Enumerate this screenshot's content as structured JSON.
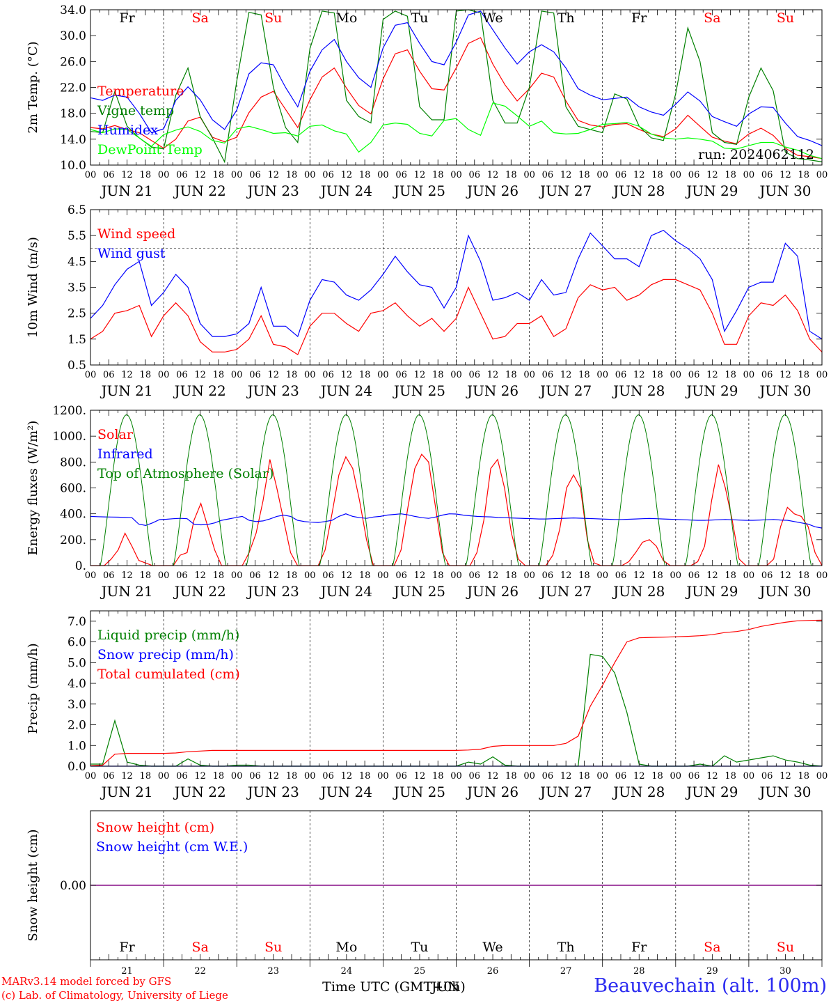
{
  "run_label": "run: 2024062112",
  "weekdays": [
    {
      "label": "Fr",
      "color": "#000000"
    },
    {
      "label": "Sa",
      "color": "#ff0000"
    },
    {
      "label": "Su",
      "color": "#ff0000"
    },
    {
      "label": "Mo",
      "color": "#000000"
    },
    {
      "label": "Tu",
      "color": "#000000"
    },
    {
      "label": "We",
      "color": "#000000"
    },
    {
      "label": "Th",
      "color": "#000000"
    },
    {
      "label": "Fr",
      "color": "#000000"
    },
    {
      "label": "Sa",
      "color": "#ff0000"
    },
    {
      "label": "Su",
      "color": "#ff0000"
    }
  ],
  "hour_ticks": [
    "00",
    "06",
    "12",
    "18"
  ],
  "date_labels": [
    "JUN 21",
    "JUN 22",
    "JUN 23",
    "JUN 24",
    "JUN 25",
    "JUN 26",
    "JUN 27",
    "JUN 28",
    "JUN 29",
    "JUN 30"
  ],
  "bottom_day_numbers": [
    "21",
    "22",
    "23",
    "24",
    "25",
    "26",
    "27",
    "28",
    "29",
    "30"
  ],
  "x_axis_title": "Time UTC (GMT+0h)",
  "x_axis_title_overlay": "JUN",
  "footer": {
    "line1": "MARv3.14 model forced by GFS",
    "line2": "(c) Lab. of Climatology, University of Liege",
    "station": "Beauvechain (alt. 100m)"
  },
  "chart_data": [
    {
      "id": "temperature",
      "type": "line",
      "ylabel": "2m Temp. (°C)",
      "ylim": [
        10,
        34
      ],
      "yticks": [
        "10.0",
        "14.0",
        "18.0",
        "22.0",
        "26.0",
        "30.0",
        "34.0"
      ],
      "ytick_values": [
        10,
        14,
        18,
        22,
        26,
        30,
        34
      ],
      "x_hours_step": 6,
      "series": [
        {
          "name": "Temperature",
          "color": "#ff0000",
          "values": [
            15.8,
            15.6,
            16.1,
            15.5,
            15.0,
            13.8,
            12.6,
            14.0,
            16.8,
            17.4,
            14.3,
            13.6,
            14.3,
            18.1,
            20.5,
            21.4,
            18.6,
            15.8,
            20.1,
            23.6,
            25.0,
            21.9,
            19.2,
            17.9,
            23.3,
            27.2,
            27.8,
            24.5,
            21.8,
            21.6,
            25.0,
            28.8,
            29.7,
            25.6,
            22.4,
            19.9,
            21.8,
            24.2,
            23.6,
            19.9,
            16.9,
            16.2,
            15.9,
            16.3,
            16.4,
            15.5,
            14.8,
            14.4,
            15.6,
            17.7,
            16.0,
            14.3,
            13.7,
            13.3,
            14.8,
            15.7,
            14.6,
            12.6,
            11.5,
            11.3,
            11.0
          ]
        },
        {
          "name": "Vigne temp",
          "color": "#008000",
          "values": [
            15.2,
            15.0,
            21.4,
            16.0,
            14.2,
            12.8,
            12.5,
            20.8,
            25.0,
            17.5,
            14.2,
            10.5,
            23.0,
            33.6,
            33.2,
            22.0,
            15.8,
            13.5,
            28.0,
            33.8,
            33.5,
            20.0,
            17.5,
            16.5,
            32.5,
            33.8,
            33.0,
            19.0,
            17.0,
            17.0,
            33.8,
            34.0,
            33.5,
            20.0,
            16.5,
            16.5,
            22.0,
            33.8,
            33.5,
            19.0,
            16.0,
            15.5,
            15.0,
            21.0,
            20.2,
            16.0,
            14.2,
            13.8,
            21.0,
            31.2,
            26.0,
            15.0,
            13.5,
            13.2,
            20.5,
            25.0,
            21.5,
            12.0,
            11.0,
            10.8,
            10.5
          ]
        },
        {
          "name": "Humidex",
          "color": "#0000ff",
          "values": [
            20.4,
            20.0,
            20.8,
            20.5,
            18.0,
            15.0,
            15.6,
            20.0,
            22.1,
            20.1,
            17.0,
            15.5,
            18.5,
            24.1,
            25.8,
            25.5,
            22.0,
            19.0,
            24.5,
            27.8,
            29.4,
            26.0,
            23.5,
            22.0,
            28.1,
            31.6,
            32.0,
            28.8,
            26.0,
            25.5,
            29.0,
            33.2,
            33.8,
            30.9,
            28.1,
            25.6,
            27.5,
            28.6,
            27.5,
            25.0,
            21.8,
            20.8,
            20.1,
            20.3,
            20.5,
            19.0,
            18.2,
            17.7,
            19.4,
            21.3,
            19.9,
            17.5,
            16.7,
            16.0,
            17.9,
            19.0,
            18.9,
            16.5,
            14.4,
            13.8,
            13.0
          ]
        },
        {
          "name": "DewPoint Temp",
          "color": "#00ff00",
          "values": [
            15.5,
            15.0,
            15.6,
            15.5,
            14.2,
            12.9,
            14.7,
            15.4,
            15.9,
            15.2,
            13.8,
            13.4,
            15.6,
            16.0,
            15.5,
            14.9,
            15.0,
            14.5,
            16.0,
            16.2,
            15.3,
            14.8,
            12.0,
            13.5,
            16.2,
            16.5,
            16.3,
            14.9,
            14.5,
            16.9,
            17.2,
            15.5,
            14.6,
            19.6,
            19.1,
            17.6,
            16.0,
            16.8,
            15.0,
            14.8,
            14.9,
            15.5,
            16.3,
            16.4,
            16.6,
            16.0,
            14.8,
            14.2,
            14.0,
            14.2,
            14.0,
            13.7,
            12.6,
            12.5,
            13.0,
            13.5,
            13.5,
            12.8,
            12.3,
            11.5,
            11.0
          ]
        }
      ]
    },
    {
      "id": "wind",
      "type": "line",
      "ylabel": "10m Wind (m/s)",
      "ylim": [
        0.5,
        6.5
      ],
      "yticks": [
        "0.5",
        "1.5",
        "2.5",
        "3.5",
        "4.5",
        "5.5",
        "6.5"
      ],
      "ytick_values": [
        0.5,
        1.5,
        2.5,
        3.5,
        4.5,
        5.5,
        6.5
      ],
      "hline": 5.0,
      "x_hours_step": 6,
      "series": [
        {
          "name": "Wind speed",
          "color": "#ff0000",
          "values": [
            1.5,
            1.8,
            2.5,
            2.6,
            2.8,
            1.6,
            2.4,
            2.9,
            2.4,
            1.4,
            1.0,
            1.0,
            1.1,
            1.5,
            2.4,
            1.3,
            1.2,
            0.9,
            2.0,
            2.5,
            2.5,
            2.1,
            1.8,
            2.5,
            2.6,
            2.9,
            2.4,
            2.0,
            2.3,
            1.8,
            2.3,
            3.5,
            2.5,
            1.5,
            1.6,
            2.1,
            2.1,
            2.4,
            1.6,
            1.9,
            3.1,
            3.6,
            3.4,
            3.5,
            3.0,
            3.2,
            3.6,
            3.8,
            3.8,
            3.6,
            3.4,
            2.5,
            1.3,
            1.3,
            2.4,
            2.9,
            2.8,
            3.2,
            2.6,
            1.5,
            1.0
          ]
        },
        {
          "name": "Wind gust",
          "color": "#0000ff",
          "values": [
            2.3,
            2.8,
            3.6,
            4.2,
            4.5,
            2.8,
            3.3,
            4.0,
            3.5,
            2.1,
            1.6,
            1.6,
            1.7,
            2.1,
            3.5,
            2.0,
            2.0,
            1.6,
            3.0,
            3.8,
            3.7,
            3.2,
            3.0,
            3.4,
            4.0,
            4.7,
            4.1,
            3.6,
            3.5,
            2.7,
            3.5,
            5.5,
            4.5,
            3.0,
            3.1,
            3.3,
            3.0,
            3.8,
            3.2,
            3.3,
            4.6,
            5.6,
            5.1,
            4.6,
            4.6,
            4.3,
            5.5,
            5.7,
            5.3,
            5.0,
            4.6,
            3.8,
            1.8,
            2.6,
            3.5,
            3.7,
            3.7,
            5.2,
            4.7,
            1.8,
            1.5
          ]
        }
      ]
    },
    {
      "id": "energy",
      "type": "line",
      "ylabel": "Energy fluxes (W/m²)",
      "ylim": [
        0,
        1200
      ],
      "yticks": [
        "0.",
        "200.",
        "400.",
        "600.",
        "800.",
        "1000.",
        "1200."
      ],
      "ytick_values": [
        0,
        200,
        400,
        600,
        800,
        1000,
        1200
      ],
      "x_hours_step": 3,
      "series": [
        {
          "name": "Solar",
          "color": "#ff0000",
          "values": [
            0,
            0,
            0,
            50,
            120,
            250,
            150,
            40,
            20,
            0,
            0,
            0,
            0,
            80,
            100,
            350,
            480,
            300,
            120,
            0,
            0,
            0,
            0,
            100,
            250,
            500,
            820,
            600,
            350,
            100,
            0,
            0,
            0,
            0,
            120,
            400,
            700,
            840,
            750,
            500,
            200,
            0,
            0,
            0,
            0,
            120,
            450,
            750,
            860,
            800,
            450,
            100,
            0,
            0,
            0,
            0,
            100,
            350,
            750,
            820,
            600,
            250,
            50,
            0,
            0,
            0,
            0,
            80,
            280,
            600,
            700,
            600,
            200,
            20,
            0,
            0,
            0,
            0,
            30,
            100,
            180,
            200,
            150,
            40,
            0,
            0,
            0,
            0,
            30,
            150,
            500,
            780,
            600,
            350,
            50,
            0,
            0,
            0,
            0,
            50,
            300,
            450,
            400,
            380,
            300,
            100,
            0
          ]
        },
        {
          "name": "Infrared",
          "color": "#0000ff",
          "values": [
            380,
            378,
            376,
            375,
            374,
            372,
            370,
            320,
            310,
            330,
            355,
            358,
            362,
            365,
            362,
            320,
            315,
            318,
            330,
            350,
            360,
            370,
            380,
            350,
            340,
            345,
            360,
            380,
            390,
            380,
            350,
            340,
            335,
            333,
            340,
            350,
            380,
            400,
            380,
            370,
            365,
            375,
            380,
            390,
            395,
            400,
            392,
            380,
            370,
            365,
            375,
            390,
            400,
            398,
            390,
            385,
            380,
            378,
            376,
            372,
            370,
            368,
            366,
            364,
            362,
            360,
            360,
            362,
            364,
            366,
            368,
            366,
            364,
            362,
            360,
            358,
            356,
            356,
            358,
            360,
            362,
            364,
            362,
            360,
            358,
            356,
            354,
            352,
            350,
            350,
            352,
            354,
            356,
            354,
            352,
            350,
            350,
            352,
            354,
            356,
            352,
            350,
            340,
            330,
            320,
            300,
            290
          ]
        },
        {
          "name": "Top of Atmosphere (Solar)",
          "color": "#008000",
          "curve": "daily-bell",
          "peak": 1165,
          "sunrise_h": 3.2,
          "sunset_h": 20.5
        }
      ]
    },
    {
      "id": "precip",
      "type": "line",
      "ylabel": "Precip (mm/h)",
      "ylim": [
        0,
        7.5
      ],
      "yticks": [
        "0.0",
        "1.0",
        "2.0",
        "3.0",
        "4.0",
        "5.0",
        "6.0",
        "7.0"
      ],
      "ytick_values": [
        0,
        1,
        2,
        3,
        4,
        5,
        6,
        7
      ],
      "x_hours_step": 6,
      "series": [
        {
          "name": "Liquid precip (mm/h)",
          "color": "#008000",
          "values": [
            0.1,
            0.1,
            2.2,
            0.2,
            0.05,
            0,
            0,
            0,
            0.35,
            0.05,
            0,
            0,
            0.05,
            0.05,
            0,
            0,
            0,
            0,
            0,
            0,
            0,
            0,
            0,
            0,
            0,
            0,
            0,
            0,
            0,
            0,
            0,
            0.2,
            0.1,
            0.45,
            0.05,
            0,
            0,
            0,
            0,
            0,
            0,
            5.4,
            5.3,
            4.5,
            2.6,
            0.1,
            0,
            0,
            0,
            0,
            0.1,
            0,
            0.5,
            0.2,
            0.3,
            0.4,
            0.5,
            0.3,
            0.2,
            0.05,
            0
          ]
        },
        {
          "name": "Snow precip (mm/h)",
          "color": "#0000ff",
          "values": [
            0,
            0,
            0,
            0,
            0,
            0,
            0,
            0,
            0,
            0,
            0,
            0,
            0,
            0,
            0,
            0,
            0,
            0,
            0,
            0,
            0,
            0,
            0,
            0,
            0,
            0,
            0,
            0,
            0,
            0,
            0,
            0,
            0,
            0,
            0,
            0,
            0,
            0,
            0,
            0,
            0,
            0,
            0,
            0,
            0,
            0,
            0,
            0,
            0,
            0,
            0,
            0,
            0,
            0,
            0,
            0,
            0,
            0,
            0,
            0,
            0
          ]
        },
        {
          "name": "Total cumulated (cm)",
          "color": "#ff0000",
          "values": [
            0.02,
            0.05,
            0.58,
            0.62,
            0.62,
            0.62,
            0.62,
            0.64,
            0.7,
            0.73,
            0.76,
            0.76,
            0.76,
            0.76,
            0.76,
            0.76,
            0.76,
            0.76,
            0.76,
            0.76,
            0.76,
            0.76,
            0.76,
            0.76,
            0.76,
            0.76,
            0.76,
            0.76,
            0.76,
            0.76,
            0.76,
            0.78,
            0.82,
            0.96,
            1.0,
            1.0,
            1.0,
            1.0,
            1.0,
            1.1,
            1.45,
            2.9,
            3.9,
            5.0,
            6.0,
            6.2,
            6.22,
            6.23,
            6.25,
            6.27,
            6.3,
            6.35,
            6.45,
            6.5,
            6.6,
            6.75,
            6.85,
            6.95,
            7.02,
            7.04,
            7.05
          ]
        }
      ]
    },
    {
      "id": "snow",
      "type": "line",
      "ylabel": "Snow height (cm)",
      "ylim": [
        -1,
        1
      ],
      "yticks": [
        "0.00"
      ],
      "ytick_values": [
        0
      ],
      "x_hours_step": 6,
      "series": [
        {
          "name": "Snow height (cm)",
          "color": "#ff0000",
          "values": [
            0,
            0
          ]
        },
        {
          "name": "Snow height (cm W.E.)",
          "color": "#0000ff",
          "values": [
            0,
            0
          ]
        }
      ]
    }
  ]
}
